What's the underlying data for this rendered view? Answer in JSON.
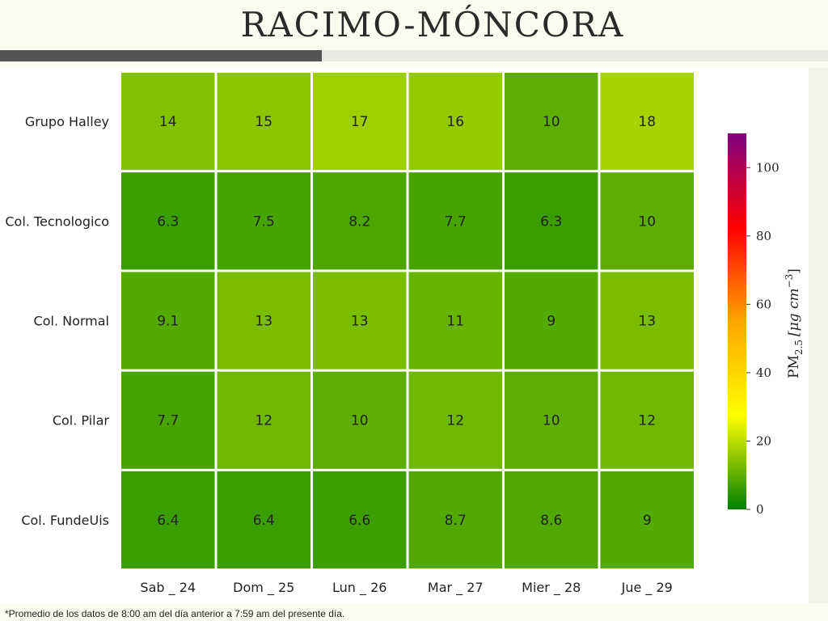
{
  "title": "RACIMO-MÓNCORA",
  "footnote": "*Promedio de los datos de 8:00 am del día anterior a 7:59 am del presente día.",
  "chart_data": {
    "type": "heatmap",
    "title": "RACIMO-MÓNCORA",
    "columns": [
      "Sab _ 24",
      "Dom _ 25",
      "Lun _ 26",
      "Mar _ 27",
      "Mier _ 28",
      "Jue _ 29"
    ],
    "rows": [
      "Grupo Halley",
      "Col. Tecnologico",
      "Col. Normal",
      "Col. Pilar",
      "Col. FundeUis"
    ],
    "values": [
      [
        "14",
        "15",
        "17",
        "16",
        "10",
        "18"
      ],
      [
        "6.3",
        "7.5",
        "8.2",
        "7.7",
        "6.3",
        "10"
      ],
      [
        "9.1",
        "13",
        "13",
        "11",
        "9",
        "13"
      ],
      [
        "7.7",
        "12",
        "10",
        "12",
        "10",
        "12"
      ],
      [
        "6.4",
        "6.4",
        "6.6",
        "8.7",
        "8.6",
        "9"
      ]
    ],
    "colorbar": {
      "label_main": "PM",
      "label_sub": "2.5",
      "label_unit": "[μg cm",
      "label_exp": "−3",
      "label_close": "]",
      "range": [
        0,
        110
      ],
      "ticks": [
        0,
        20,
        40,
        60,
        80,
        100
      ],
      "tick_labels": [
        "0",
        "20",
        "40",
        "60",
        "80",
        "100"
      ],
      "colors": [
        "#008000",
        "#ffff00",
        "#ffa500",
        "#ff0000",
        "#800080"
      ]
    }
  }
}
